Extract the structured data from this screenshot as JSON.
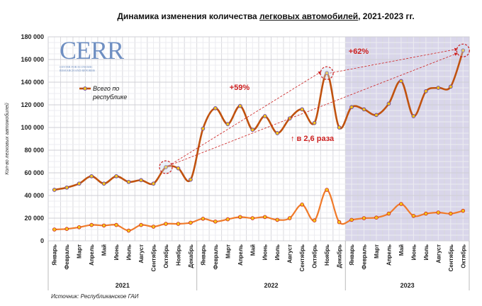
{
  "chart_data": {
    "type": "line",
    "title_parts": [
      "Динамика изменения количества ",
      "легковых автомобилей",
      ", 2021-2023 гг."
    ],
    "ylabel": "Кол-во легковых автомобилей",
    "ylim": [
      0,
      180000
    ],
    "yticks": [
      "0",
      "20 000",
      "40 000",
      "60 000",
      "80 000",
      "100 000",
      "120 000",
      "140 000",
      "160 000",
      "180 000"
    ],
    "ytick_values": [
      0,
      20000,
      40000,
      60000,
      80000,
      100000,
      120000,
      140000,
      160000,
      180000
    ],
    "grid": true,
    "legend_position": "top-left",
    "categories": [
      "Январь",
      "Февраль",
      "Март",
      "Апрель",
      "Май",
      "Июнь",
      "Июль",
      "Август",
      "Сентябрь",
      "Октябрь",
      "Ноябрь",
      "Декабрь",
      "Январь",
      "Февраль",
      "Март",
      "Апрель",
      "Май",
      "Июнь",
      "Июль",
      "Август",
      "Сентябрь",
      "Октябрь",
      "Ноябрь",
      "Декабрь",
      "Январь",
      "Февраль",
      "Март",
      "Апрель",
      "Май",
      "Июнь",
      "Июль",
      "Август",
      "Сентябрь",
      "Октябрь"
    ],
    "years": [
      "2021",
      "2022",
      "2023"
    ],
    "highlighted_year": "2023",
    "series": [
      {
        "name": "Всего по республике",
        "color": "#c0520f",
        "values": [
          45000,
          47000,
          50500,
          57000,
          50500,
          57000,
          52000,
          53500,
          50500,
          65000,
          64000,
          54000,
          99000,
          117000,
          103000,
          119000,
          98000,
          110000,
          95000,
          108000,
          116000,
          104000,
          148000,
          100000,
          118000,
          116000,
          111000,
          121000,
          141000,
          110000,
          132000,
          135000,
          136000,
          168000
        ]
      },
      {
        "color": "#f07a2a",
        "values": [
          10000,
          10500,
          12000,
          14000,
          13500,
          14000,
          9000,
          14000,
          12500,
          15000,
          15000,
          16000,
          19500,
          17000,
          19000,
          21000,
          20000,
          21000,
          18500,
          20000,
          32000,
          18000,
          45000,
          16500,
          18500,
          20000,
          20500,
          24000,
          32500,
          22000,
          24000,
          25000,
          24000,
          26500
        ]
      }
    ],
    "annotations": [
      {
        "text": "+59%"
      },
      {
        "text": "+62%"
      },
      {
        "text": "↑ в 2,6 раза"
      }
    ],
    "source": "Источник: Республиканское ГАИ",
    "colors": {
      "highlight_bg": "#d9d6ea",
      "annotation": "#cc1f1f",
      "marker_main": "#f5c518",
      "marker_main_edge": "#6a3fa0",
      "marker_second": "#f5c518",
      "marker_second_edge": "#d02020"
    }
  },
  "logo": {
    "text": "CERR",
    "subtitle": "CENTER FOR ECONOMIC RESEARCH AND REFORMS"
  }
}
